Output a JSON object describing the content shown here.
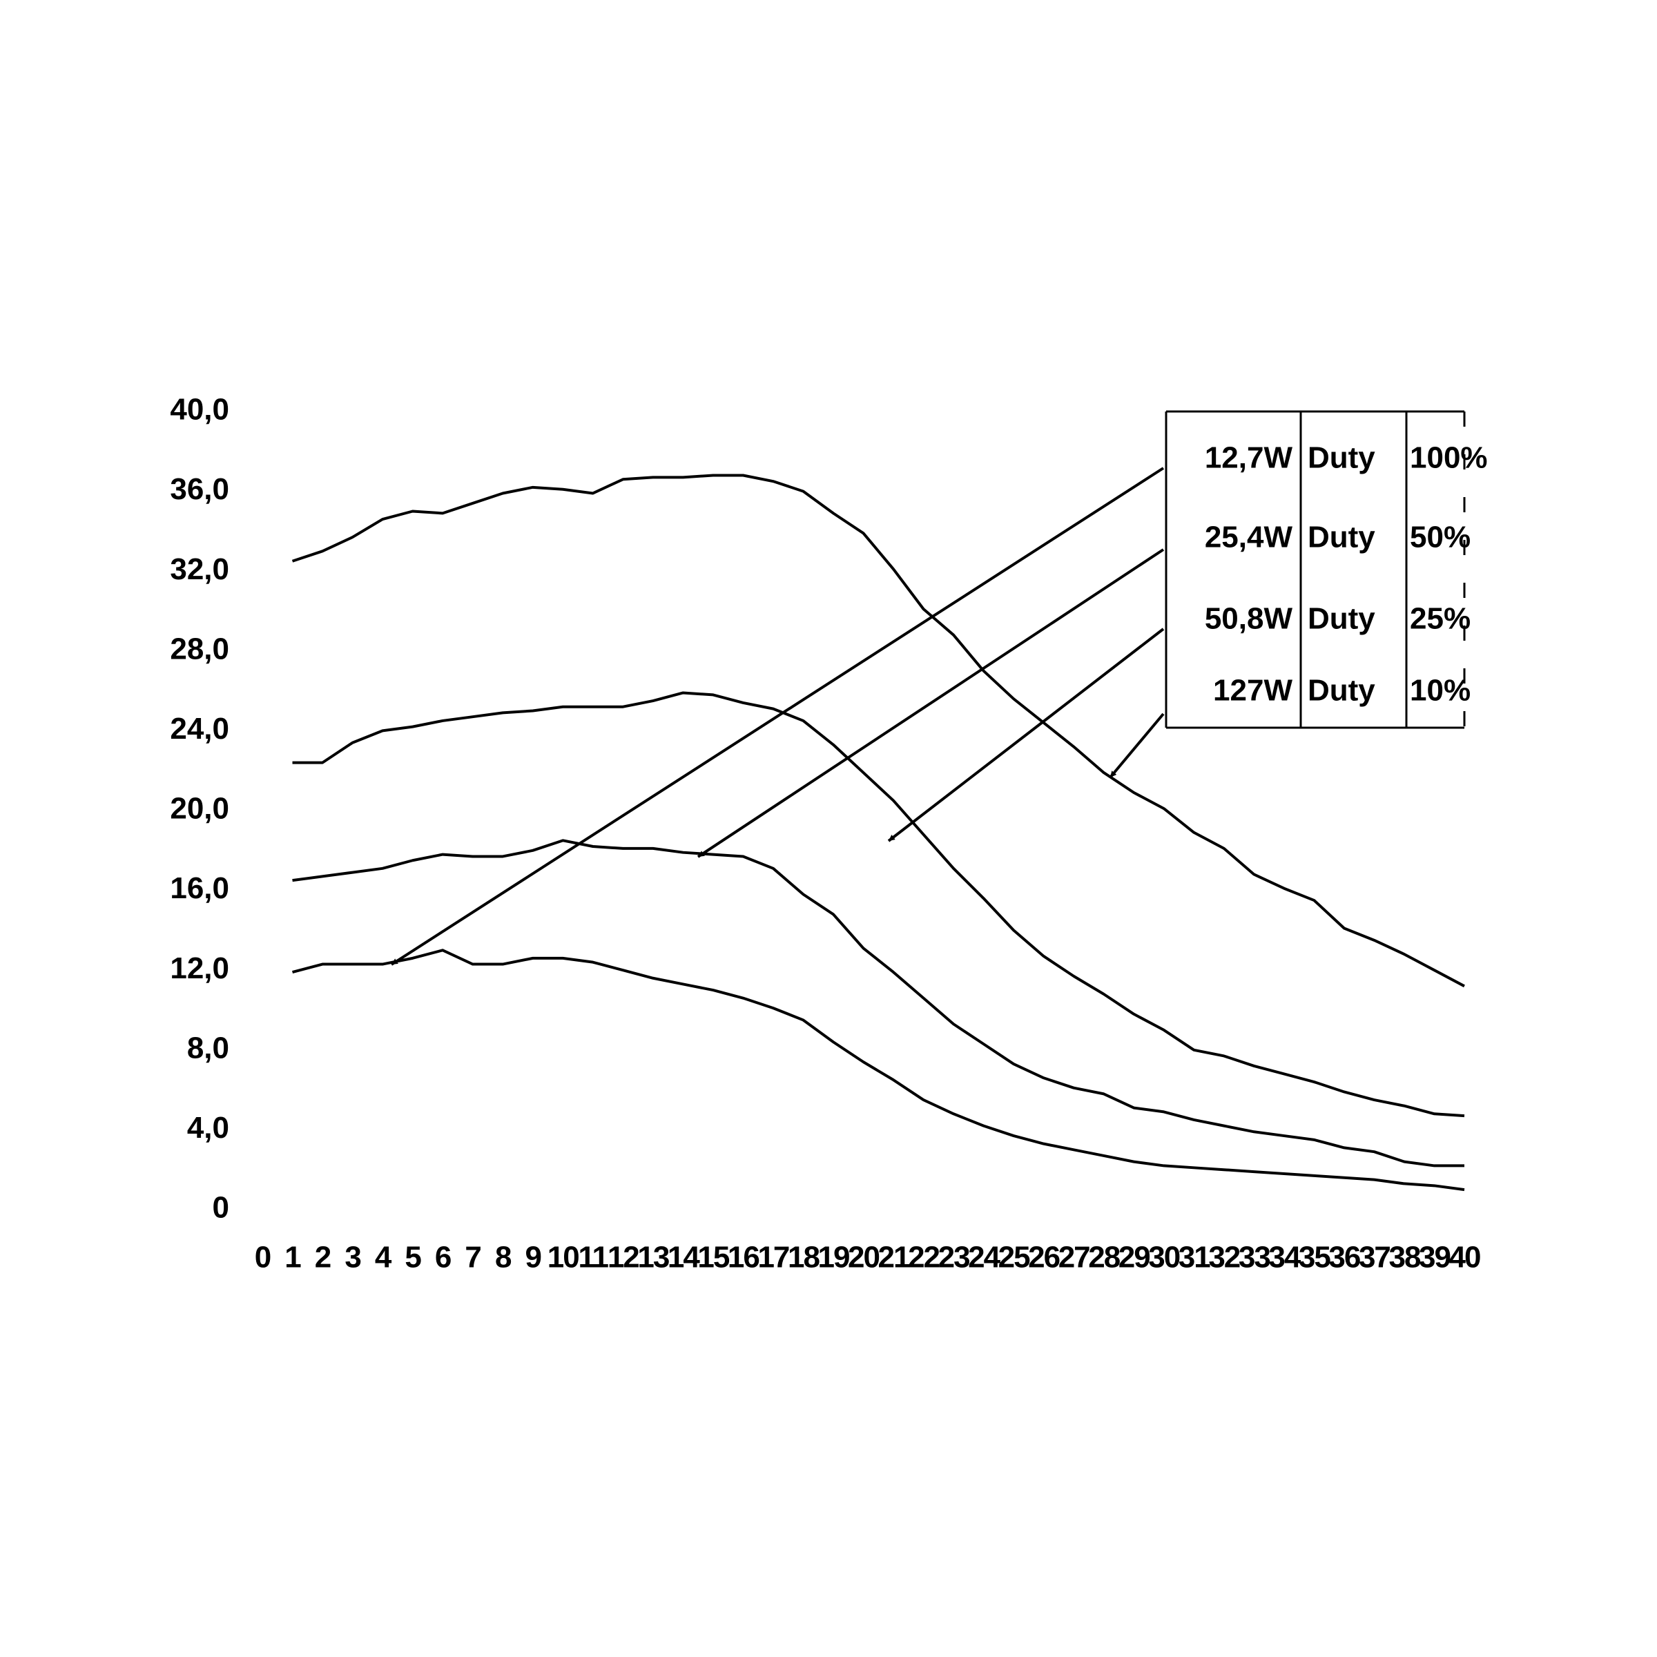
{
  "chart_data": {
    "type": "line",
    "x": [
      1,
      2,
      3,
      4,
      5,
      6,
      7,
      8,
      9,
      10,
      11,
      12,
      13,
      14,
      15,
      16,
      17,
      18,
      19,
      20,
      21,
      22,
      23,
      24,
      25,
      26,
      27,
      28,
      29,
      30,
      31,
      32,
      33,
      34,
      35,
      36,
      37,
      38,
      39,
      40
    ],
    "series": [
      {
        "name": "127W",
        "duty_label": "Duty",
        "duty": "10%",
        "color": "#000000",
        "values": [
          32.5,
          33.0,
          33.7,
          34.6,
          35.0,
          34.9,
          35.4,
          35.9,
          36.2,
          36.1,
          35.9,
          36.6,
          36.7,
          36.7,
          36.8,
          36.8,
          36.5,
          36.0,
          34.9,
          33.9,
          32.1,
          30.1,
          28.8,
          27.0,
          25.6,
          24.4,
          23.2,
          21.9,
          20.9,
          20.1,
          18.9,
          18.1,
          16.8,
          16.1,
          15.5,
          14.1,
          13.5,
          12.8,
          12.0,
          11.2
        ]
      },
      {
        "name": "50,8W",
        "duty_label": "Duty",
        "duty": "25%",
        "color": "#000000",
        "values": [
          22.4,
          22.4,
          23.4,
          24.0,
          24.2,
          24.5,
          24.7,
          24.9,
          25.0,
          25.2,
          25.2,
          25.2,
          25.5,
          25.9,
          25.8,
          25.4,
          25.1,
          24.5,
          23.3,
          21.9,
          20.5,
          18.8,
          17.1,
          15.6,
          14.0,
          12.7,
          11.7,
          10.8,
          9.8,
          9.0,
          8.0,
          7.7,
          7.2,
          6.8,
          6.4,
          5.9,
          5.5,
          5.2,
          4.8,
          4.7
        ]
      },
      {
        "name": "25,4W",
        "duty_label": "Duty",
        "duty": "50%",
        "color": "#000000",
        "values": [
          16.5,
          16.7,
          16.9,
          17.1,
          17.5,
          17.8,
          17.7,
          17.7,
          18.0,
          18.5,
          18.2,
          18.1,
          18.1,
          17.9,
          17.8,
          17.7,
          17.1,
          15.8,
          14.8,
          13.1,
          11.9,
          10.6,
          9.3,
          8.3,
          7.3,
          6.6,
          6.1,
          5.8,
          5.1,
          4.9,
          4.5,
          4.2,
          3.9,
          3.7,
          3.5,
          3.1,
          2.9,
          2.4,
          2.2,
          2.2
        ]
      },
      {
        "name": "12,7W",
        "duty_label": "Duty",
        "duty": "100%",
        "color": "#000000",
        "values": [
          11.9,
          12.3,
          12.3,
          12.3,
          12.6,
          13.0,
          12.3,
          12.3,
          12.6,
          12.6,
          12.4,
          12.0,
          11.6,
          11.3,
          11.0,
          10.6,
          10.1,
          9.5,
          8.4,
          7.4,
          6.5,
          5.5,
          4.8,
          4.2,
          3.7,
          3.3,
          3.0,
          2.7,
          2.4,
          2.2,
          2.1,
          2.0,
          1.9,
          1.8,
          1.7,
          1.6,
          1.5,
          1.3,
          1.2,
          1.0
        ]
      }
    ],
    "xlim": [
      0,
      40
    ],
    "xticks": [
      0,
      1,
      2,
      3,
      4,
      5,
      6,
      7,
      8,
      9,
      10,
      11,
      12,
      13,
      14,
      15,
      16,
      17,
      18,
      19,
      20,
      21,
      22,
      23,
      24,
      25,
      26,
      27,
      28,
      29,
      30,
      31,
      32,
      33,
      34,
      35,
      36,
      37,
      38,
      39,
      40
    ],
    "ylim": [
      0,
      40
    ],
    "yticks": [
      0,
      {
        "value": 4,
        "label": "4,0"
      },
      {
        "value": 8,
        "label": "8,0"
      },
      {
        "value": 12,
        "label": "12,0"
      },
      {
        "value": 16,
        "label": "16,0"
      },
      {
        "value": 20,
        "label": "20,0"
      },
      {
        "value": 24,
        "label": "24,0"
      },
      {
        "value": 28,
        "label": "28,0"
      },
      {
        "value": 32,
        "label": "32,0"
      },
      {
        "value": 36,
        "label": "36,0"
      },
      {
        "value": 40,
        "label": "40,0"
      }
    ],
    "grid": true
  }
}
